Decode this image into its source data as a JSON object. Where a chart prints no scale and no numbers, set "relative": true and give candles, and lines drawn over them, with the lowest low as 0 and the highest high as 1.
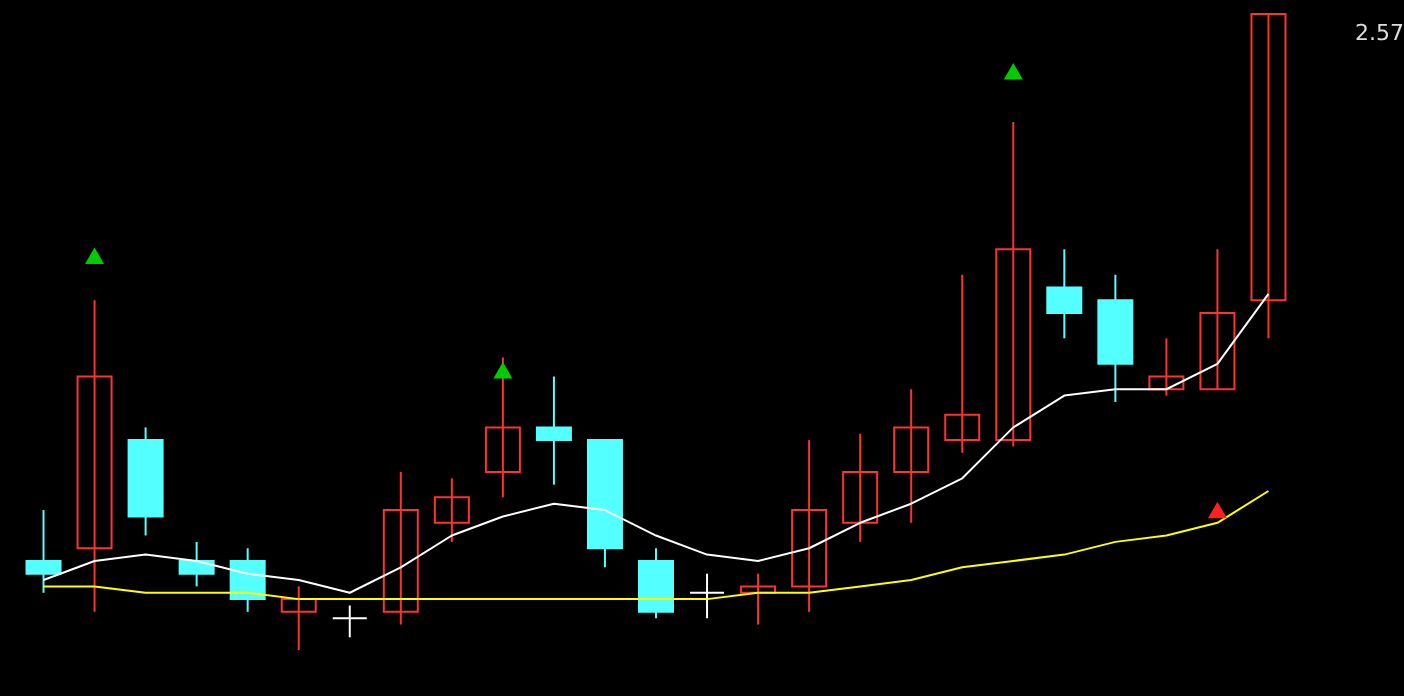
{
  "chart_data": {
    "type": "candlestick",
    "relative": true,
    "categories": [
      null,
      null,
      null,
      null,
      null,
      null,
      null,
      null,
      null,
      null,
      null,
      null,
      null,
      null,
      null,
      null,
      null,
      null,
      null,
      null,
      null,
      null,
      null,
      null,
      null
    ],
    "ohlc": [
      [
        0.14,
        0.22,
        0.09,
        0.12
      ],
      [
        0.16,
        0.55,
        0.06,
        0.43
      ],
      [
        0.33,
        0.35,
        0.18,
        0.21
      ],
      [
        0.14,
        0.17,
        0.1,
        0.12
      ],
      [
        0.14,
        0.16,
        0.06,
        0.08
      ],
      [
        0.06,
        0.1,
        0,
        0.08
      ],
      [
        0.05,
        0.07,
        0.02,
        0.05
      ],
      [
        0.06,
        0.28,
        0.04,
        0.22
      ],
      [
        0.2,
        0.27,
        0.17,
        0.24
      ],
      [
        0.28,
        0.46,
        0.24,
        0.35
      ],
      [
        0.35,
        0.43,
        0.26,
        0.33
      ],
      [
        0.33,
        0.33,
        0.13,
        0.16
      ],
      [
        0.14,
        0.16,
        0.05,
        0.06
      ],
      [
        0.09,
        0.12,
        0.05,
        0.09
      ],
      [
        0.09,
        0.12,
        0.04,
        0.1
      ],
      [
        0.1,
        0.33,
        0.06,
        0.22
      ],
      [
        0.2,
        0.34,
        0.17,
        0.28
      ],
      [
        0.28,
        0.41,
        0.2,
        0.35
      ],
      [
        0.33,
        0.59,
        0.31,
        0.37
      ],
      [
        0.33,
        0.83,
        0.32,
        0.63
      ],
      [
        0.57,
        0.63,
        0.49,
        0.53
      ],
      [
        0.55,
        0.59,
        0.39,
        0.45
      ],
      [
        0.41,
        0.49,
        0.4,
        0.43
      ],
      [
        0.41,
        0.63,
        0.41,
        0.53
      ],
      [
        0.55,
        1.0,
        0.49,
        1.0
      ]
    ],
    "colors": [
      "#54ffff",
      "#ff3232",
      "#54ffff",
      "#54ffff",
      "#54ffff",
      "#ff3232",
      "#ffffff",
      "#ff3232",
      "#ff3232",
      "#ff3232",
      "#54ffff",
      "#54ffff",
      "#54ffff",
      "#ffffff",
      "#ff3232",
      "#ff3232",
      "#ff3232",
      "#ff3232",
      "#ff3232",
      "#ff3232",
      "#54ffff",
      "#54ffff",
      "#ff3232",
      "#ff3232",
      "#ff3232"
    ],
    "series": [
      {
        "type": "line",
        "color": "#ffffff",
        "marker": "none",
        "values": [
          0.11,
          0.14,
          0.15,
          0.14,
          0.12,
          0.11,
          0.09,
          0.13,
          0.18,
          0.21,
          0.23,
          0.22,
          0.18,
          0.15,
          0.14,
          0.16,
          0.2,
          0.23,
          0.27,
          0.35,
          0.4,
          0.41,
          0.41,
          0.45,
          0.56
        ]
      },
      {
        "type": "line",
        "color": "#ffff00",
        "marker": "none",
        "values": [
          0.1,
          0.1,
          0.09,
          0.09,
          0.09,
          0.08,
          0.08,
          0.08,
          0.08,
          0.08,
          0.08,
          0.08,
          0.08,
          0.08,
          0.09,
          0.09,
          0.1,
          0.11,
          0.13,
          0.14,
          0.15,
          0.17,
          0.18,
          0.2,
          0.25
        ]
      },
      {
        "type": "scatter",
        "color": "#00cc00",
        "marker": "triangle",
        "values": [
          null,
          0.62,
          null,
          null,
          null,
          null,
          null,
          null,
          null,
          0.44,
          null,
          null,
          null,
          null,
          null,
          null,
          null,
          null,
          null,
          0.91,
          null,
          null,
          null,
          null,
          null
        ]
      },
      {
        "type": "scatter",
        "color": "#ff2020",
        "marker": "triangle",
        "values": [
          null,
          null,
          null,
          null,
          null,
          null,
          null,
          null,
          null,
          null,
          null,
          null,
          null,
          null,
          null,
          null,
          null,
          null,
          null,
          null,
          null,
          null,
          null,
          0.22,
          null
        ]
      }
    ],
    "annotations": [
      "2.57"
    ]
  }
}
